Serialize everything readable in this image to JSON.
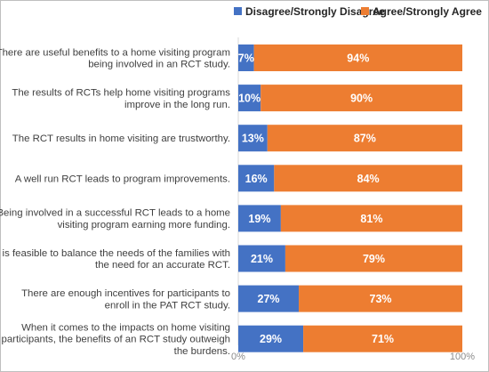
{
  "chart_data": {
    "type": "bar",
    "orientation": "horizontal",
    "stacked": true,
    "percent_stacked": true,
    "legend_position": "top-right",
    "grid": false,
    "xlim": [
      0,
      100
    ],
    "x_ticks": [
      "0%",
      "100%"
    ],
    "categories": [
      [
        "There are useful benefits to a home visiting program",
        "being involved in an RCT study."
      ],
      [
        "The results of RCTs help home visiting programs",
        "improve in the long run."
      ],
      [
        "The RCT results in home visiting are trustworthy."
      ],
      [
        "A well run RCT leads to program improvements."
      ],
      [
        "Being involved in a successful RCT leads to a home",
        "visiting program earning more funding."
      ],
      [
        "It is feasible to balance the needs of the families with",
        "the need for an accurate RCT."
      ],
      [
        "There are enough incentives for participants to",
        "enroll in the PAT RCT study."
      ],
      [
        "When it comes to the impacts on home visiting",
        "participants, the benefits of an RCT study outweigh",
        "the burdens."
      ]
    ],
    "series": [
      {
        "name": "Disagree/Strongly Disagree",
        "color": "#4472C4",
        "values": [
          7,
          10,
          13,
          16,
          19,
          21,
          27,
          29
        ],
        "labels": [
          "7%",
          "10%",
          "13%",
          "16%",
          "19%",
          "21%",
          "27%",
          "29%"
        ]
      },
      {
        "name": "Agree/Strongly Agree",
        "color": "#ED7D31",
        "values": [
          94,
          90,
          87,
          84,
          81,
          79,
          73,
          71
        ],
        "labels": [
          "94%",
          "90%",
          "87%",
          "84%",
          "81%",
          "79%",
          "73%",
          "71%"
        ]
      }
    ]
  }
}
